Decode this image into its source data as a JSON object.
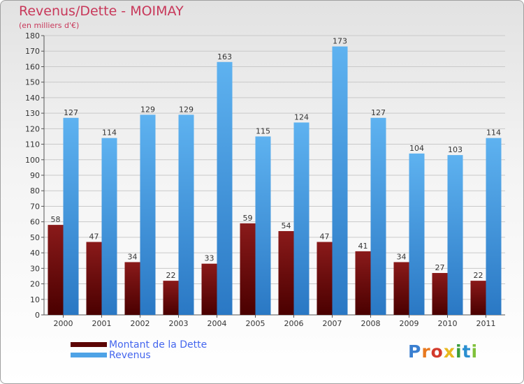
{
  "chart_data": {
    "type": "bar",
    "title": "Revenus/Dette - MOIMAY",
    "subtitle": "(en milliers d'€)",
    "categories": [
      "2000",
      "2001",
      "2002",
      "2003",
      "2004",
      "2005",
      "2006",
      "2007",
      "2008",
      "2009",
      "2010",
      "2011"
    ],
    "series": [
      {
        "name": "Montant de la Dette",
        "color": "#7a0a0a",
        "values": [
          58,
          47,
          34,
          22,
          33,
          59,
          54,
          47,
          41,
          34,
          27,
          22
        ]
      },
      {
        "name": "Revenus",
        "color": "#4ea3e6",
        "values": [
          127,
          114,
          129,
          129,
          163,
          115,
          124,
          173,
          127,
          104,
          103,
          114
        ]
      }
    ],
    "ylim": [
      0,
      180
    ],
    "yticks": [
      0,
      10,
      20,
      30,
      40,
      50,
      60,
      70,
      80,
      90,
      100,
      110,
      120,
      130,
      140,
      150,
      160,
      170,
      180
    ],
    "grid": true,
    "legend": "bottom-left"
  },
  "logo": {
    "text": "Proxiti"
  }
}
